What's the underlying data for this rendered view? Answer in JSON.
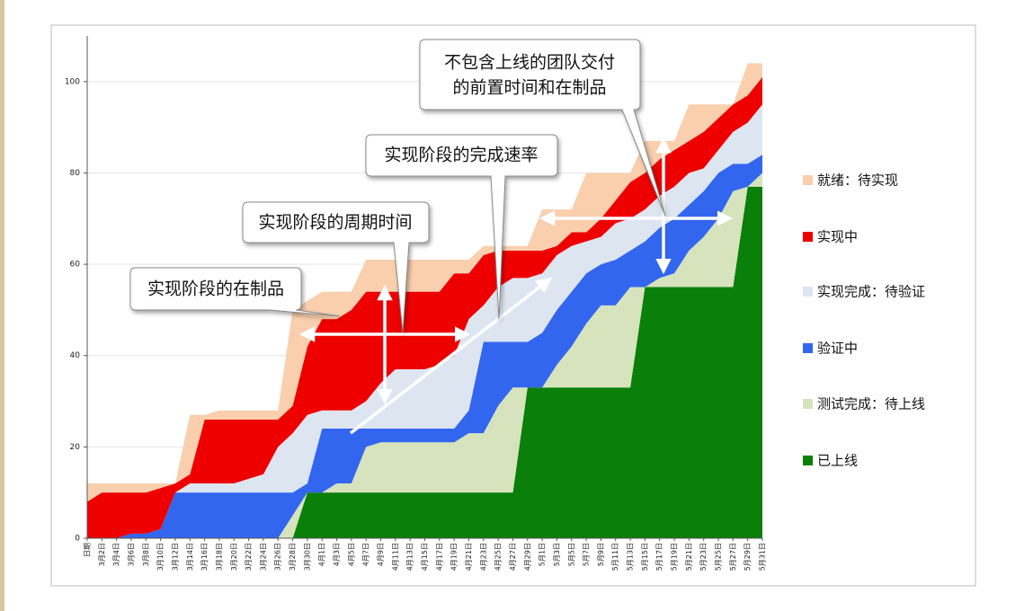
{
  "chart_data": {
    "type": "stacked_area",
    "categories": [
      "日期",
      "3月2日",
      "3月4日",
      "3月6日",
      "3月8日",
      "3月10日",
      "3月12日",
      "3月14日",
      "3月16日",
      "3月18日",
      "3月20日",
      "3月22日",
      "3月24日",
      "3月26日",
      "3月28日",
      "3月30日",
      "4月1日",
      "4月3日",
      "4月5日",
      "4月7日",
      "4月9日",
      "4月11日",
      "4月13日",
      "4月15日",
      "4月17日",
      "4月19日",
      "4月21日",
      "4月23日",
      "4月25日",
      "4月27日",
      "4月29日",
      "5月1日",
      "5月3日",
      "5月5日",
      "5月7日",
      "5月9日",
      "5月11日",
      "5月13日",
      "5月15日",
      "5月17日",
      "5月19日",
      "5月21日",
      "5月23日",
      "5月25日",
      "5月27日",
      "5月29日",
      "5月31日"
    ],
    "series": [
      {
        "name": "就绪：待实现",
        "color": "#f9cfae",
        "values": [
          4,
          2,
          2,
          2,
          2,
          1,
          0,
          13,
          1,
          2,
          2,
          2,
          2,
          2,
          21,
          10,
          6,
          6,
          4,
          7,
          7,
          7,
          7,
          7,
          7,
          3,
          3,
          2,
          1,
          1,
          1,
          9,
          8,
          5,
          13,
          10,
          6,
          2,
          7,
          4,
          2,
          8,
          6,
          3,
          0,
          7,
          3
        ]
      },
      {
        "name": "实现中",
        "color": "#ee0000",
        "values": [
          8,
          10,
          10,
          9,
          9,
          9,
          2,
          2,
          14,
          14,
          14,
          13,
          12,
          6,
          6,
          15,
          20,
          20,
          22,
          24,
          20,
          17,
          17,
          17,
          16,
          18,
          10,
          11,
          8,
          6,
          6,
          5,
          2,
          3,
          2,
          4,
          5,
          8,
          8,
          8,
          8,
          7,
          8,
          7,
          6,
          6,
          6
        ]
      },
      {
        "name": "实现完成：待验证",
        "color": "#dde5f1",
        "values": [
          0,
          0,
          0,
          0,
          0,
          0,
          0,
          2,
          2,
          2,
          2,
          3,
          4,
          10,
          13,
          15,
          4,
          4,
          4,
          6,
          10,
          13,
          13,
          13,
          14,
          16,
          20,
          8,
          12,
          14,
          14,
          13,
          12,
          10,
          7,
          6,
          8,
          7,
          7,
          7,
          7,
          7,
          5,
          5,
          7,
          9,
          11
        ]
      },
      {
        "name": "验证中",
        "color": "#3366ee",
        "values": [
          0,
          0,
          0,
          1,
          1,
          2,
          10,
          10,
          10,
          10,
          10,
          10,
          10,
          10,
          5,
          2,
          14,
          12,
          12,
          4,
          3,
          3,
          3,
          3,
          3,
          3,
          5,
          20,
          14,
          10,
          10,
          12,
          12,
          12,
          11,
          9,
          10,
          8,
          10,
          11,
          12,
          10,
          10,
          10,
          6,
          5,
          4
        ]
      },
      {
        "name": "测试完成：待上线",
        "color": "#d6e3bd",
        "values": [
          0,
          0,
          0,
          0,
          0,
          0,
          0,
          0,
          0,
          0,
          0,
          0,
          0,
          0,
          5,
          0,
          0,
          2,
          2,
          10,
          11,
          11,
          11,
          11,
          11,
          11,
          13,
          13,
          19,
          23,
          0,
          0,
          5,
          9,
          14,
          18,
          18,
          22,
          0,
          2,
          3,
          8,
          11,
          15,
          21,
          0,
          3
        ]
      },
      {
        "name": "已上线",
        "color": "#0a7f0a",
        "values": [
          0,
          0,
          0,
          0,
          0,
          0,
          0,
          0,
          0,
          0,
          0,
          0,
          0,
          0,
          0,
          10,
          10,
          10,
          10,
          10,
          10,
          10,
          10,
          10,
          10,
          10,
          10,
          10,
          10,
          10,
          33,
          33,
          33,
          33,
          33,
          33,
          33,
          33,
          55,
          55,
          55,
          55,
          55,
          55,
          55,
          77,
          77
        ]
      }
    ],
    "ylim": [
      0,
      110
    ],
    "yticks": [
      0,
      20,
      40,
      60,
      80,
      100
    ],
    "grid": true,
    "legend": "right",
    "annotations": [
      {
        "lines": [
          "实现阶段的在制品"
        ]
      },
      {
        "lines": [
          "实现阶段的周期时间"
        ]
      },
      {
        "lines": [
          "实现阶段的完成速率"
        ]
      },
      {
        "lines": [
          "不包含上线的团队交付",
          "的前置时间和在制品"
        ]
      }
    ]
  }
}
